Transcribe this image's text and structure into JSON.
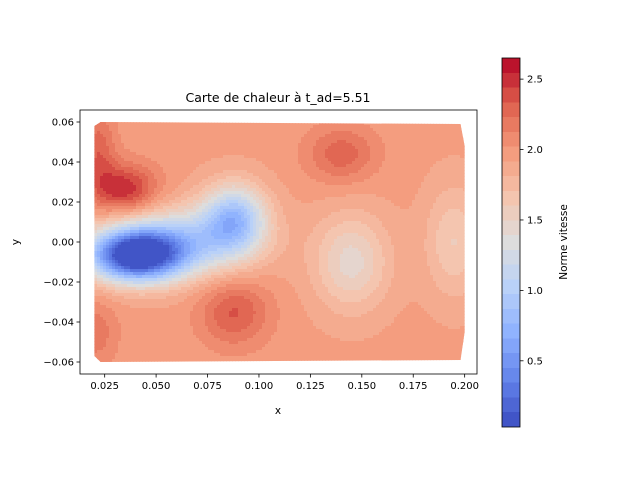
{
  "chart_data": {
    "type": "heatmap",
    "title": "Carte de chaleur à t_ad=5.51",
    "xlabel": "x",
    "ylabel": "y",
    "xlim": [
      0.013,
      0.206
    ],
    "ylim": [
      -0.066,
      0.066
    ],
    "x_ticks": [
      0.025,
      0.05,
      0.075,
      0.1,
      0.125,
      0.15,
      0.175,
      0.2
    ],
    "x_tick_labels": [
      "0.025",
      "0.050",
      "0.075",
      "0.100",
      "0.125",
      "0.150",
      "0.175",
      "0.200"
    ],
    "y_ticks": [
      -0.06,
      -0.04,
      -0.02,
      0.0,
      0.02,
      0.04,
      0.06
    ],
    "y_tick_labels": [
      "−0.06",
      "−0.04",
      "−0.02",
      "0.00",
      "0.02",
      "0.04",
      "0.06"
    ],
    "domain": {
      "x": [
        0.02,
        0.2
      ],
      "y": [
        -0.059,
        0.06
      ]
    },
    "colorbar": {
      "label": "Norme vitesse",
      "range": [
        0.03,
        2.65
      ],
      "ticks": [
        0.5,
        1.0,
        1.5,
        2.0,
        2.5
      ],
      "tick_labels": [
        "0.5",
        "1.0",
        "1.5",
        "2.0",
        "2.5"
      ],
      "colormap": "coolwarm",
      "levels": 25
    },
    "background_value": 1.95,
    "features": [
      {
        "x": 0.035,
        "y": 0.026,
        "value": 2.55,
        "sx": 0.011,
        "sy": 0.009
      },
      {
        "x": 0.022,
        "y": 0.045,
        "value": 2.3,
        "sx": 0.006,
        "sy": 0.015
      },
      {
        "x": 0.04,
        "y": -0.007,
        "value": 0.1,
        "sx": 0.016,
        "sy": 0.009
      },
      {
        "x": 0.06,
        "y": 0.0,
        "value": 1.1,
        "sx": 0.025,
        "sy": 0.012
      },
      {
        "x": 0.088,
        "y": 0.012,
        "value": 0.95,
        "sx": 0.011,
        "sy": 0.012
      },
      {
        "x": 0.088,
        "y": -0.035,
        "value": 2.35,
        "sx": 0.012,
        "sy": 0.012
      },
      {
        "x": 0.14,
        "y": 0.044,
        "value": 2.3,
        "sx": 0.012,
        "sy": 0.01
      },
      {
        "x": 0.145,
        "y": -0.01,
        "value": 1.45,
        "sx": 0.013,
        "sy": 0.017
      },
      {
        "x": 0.195,
        "y": 0.0,
        "value": 1.6,
        "sx": 0.01,
        "sy": 0.02
      },
      {
        "x": 0.02,
        "y": -0.045,
        "value": 2.2,
        "sx": 0.008,
        "sy": 0.012
      }
    ]
  }
}
